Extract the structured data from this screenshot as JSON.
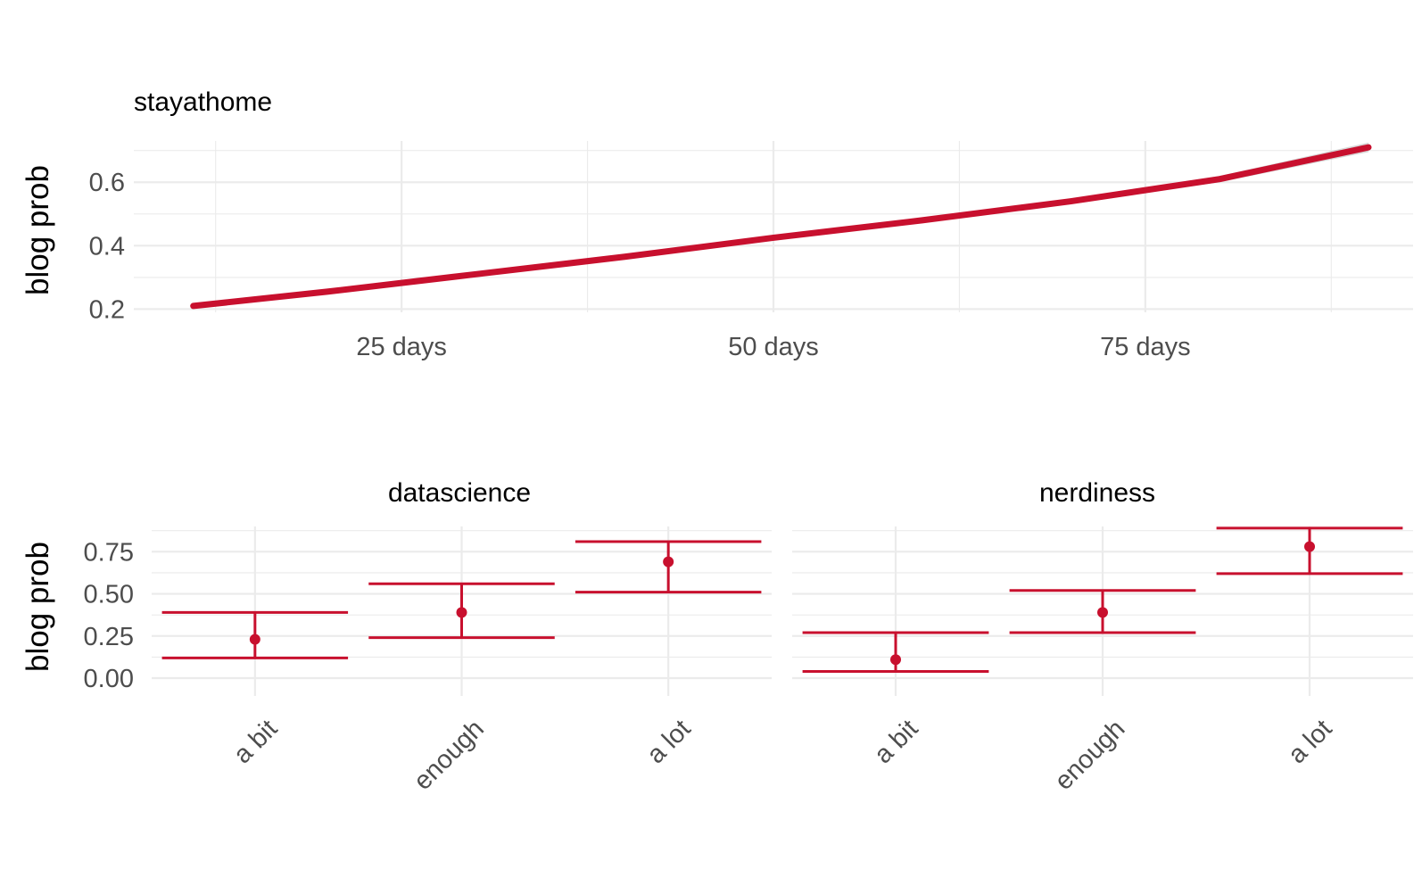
{
  "chart_data": [
    {
      "type": "line",
      "title": "stayathome",
      "xlabel": "",
      "ylabel": "blog prob",
      "xlim": [
        7,
        93
      ],
      "ylim": [
        0.19,
        0.73
      ],
      "x_ticks": [
        25,
        50,
        75
      ],
      "x_tick_labels": [
        "25 days",
        "50 days",
        "75 days"
      ],
      "y_ticks": [
        0.2,
        0.4,
        0.6
      ],
      "y_tick_labels": [
        "0.2",
        "0.4",
        "0.6"
      ],
      "grid": true,
      "color": "#c8102e",
      "series": [
        {
          "x": [
            11,
            20,
            30,
            40,
            50,
            60,
            70,
            80,
            90
          ],
          "y": [
            0.21,
            0.255,
            0.31,
            0.365,
            0.425,
            0.48,
            0.54,
            0.61,
            0.71
          ],
          "ci_low": [
            0.205,
            0.25,
            0.305,
            0.36,
            0.42,
            0.475,
            0.535,
            0.6,
            0.695
          ],
          "ci_high": [
            0.215,
            0.26,
            0.315,
            0.37,
            0.43,
            0.485,
            0.545,
            0.62,
            0.725
          ]
        }
      ]
    },
    {
      "type": "errorbar",
      "title": "datascience",
      "xlabel": "",
      "ylabel": "blog prob",
      "categories": [
        "a bit",
        "enough",
        "a lot"
      ],
      "ylim": [
        0,
        0.9
      ],
      "y_ticks": [
        0,
        0.25,
        0.5,
        0.75
      ],
      "y_tick_labels": [
        "0.00",
        "0.25",
        "0.50",
        "0.75"
      ],
      "grid": true,
      "color": "#c8102e",
      "estimate": [
        0.23,
        0.39,
        0.69
      ],
      "lower": [
        0.12,
        0.24,
        0.51
      ],
      "upper": [
        0.39,
        0.56,
        0.81
      ]
    },
    {
      "type": "errorbar",
      "title": "nerdiness",
      "xlabel": "",
      "ylabel": "",
      "categories": [
        "a bit",
        "enough",
        "a lot"
      ],
      "ylim": [
        0,
        0.9
      ],
      "y_ticks": [
        0,
        0.25,
        0.5,
        0.75
      ],
      "grid": true,
      "color": "#c8102e",
      "estimate": [
        0.11,
        0.39,
        0.78
      ],
      "lower": [
        0.04,
        0.27,
        0.62
      ],
      "upper": [
        0.27,
        0.52,
        0.89
      ]
    }
  ]
}
